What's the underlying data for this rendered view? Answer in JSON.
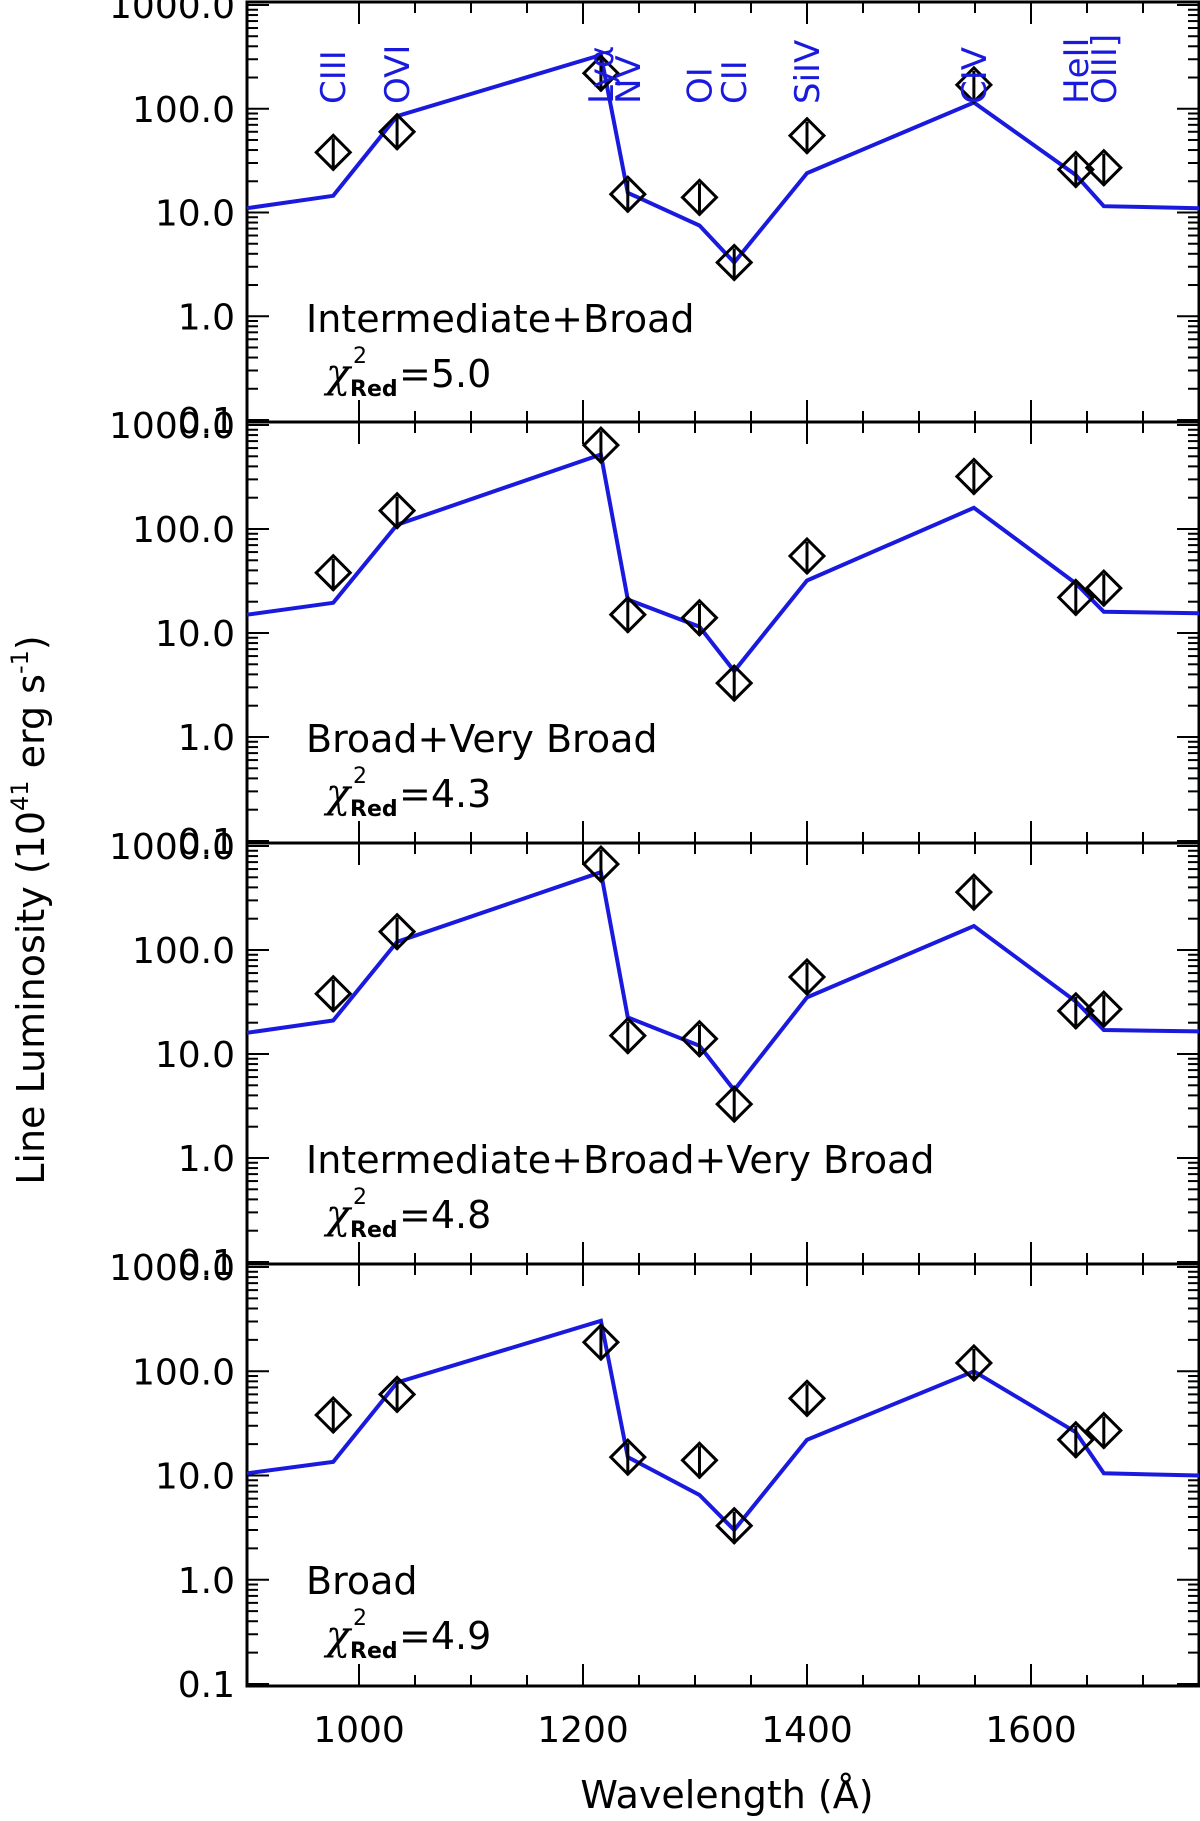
{
  "colors": {
    "model": "#1a1adf",
    "obs": "#000000",
    "line_id": "#1a1adf"
  },
  "chart_data": {
    "type": "line",
    "xlabel": "Wavelength (Å)",
    "ylabel_main": "Line Luminosity (10",
    "ylabel_exp": "41",
    "ylabel_tail": " erg s",
    "ylabel_exp2": "-1",
    "ylabel_close": ")",
    "xlim": [
      900,
      1750
    ],
    "ylim": [
      0.1,
      1000
    ],
    "yscale": "log",
    "xticks": [
      1000,
      1200,
      1400,
      1600
    ],
    "xtick_labels": [
      "1000",
      "1200",
      "1400",
      "1600"
    ],
    "yticks": [
      0.1,
      1,
      10,
      100,
      1000
    ],
    "ytick_labels": [
      "0.1",
      "1.0",
      "10.0",
      "100.0",
      "1000.0"
    ],
    "line_ids": [
      {
        "label": "CIII",
        "x": 977
      },
      {
        "label": "OVI",
        "x": 1034
      },
      {
        "label": "Lyα",
        "x": 1216
      },
      {
        "label": "NV",
        "x": 1240
      },
      {
        "label": "OI",
        "x": 1304
      },
      {
        "label": "CII",
        "x": 1335
      },
      {
        "label": "SiIV",
        "x": 1400
      },
      {
        "label": "CIV",
        "x": 1549
      },
      {
        "label": "HeII",
        "x": 1640
      },
      {
        "label": "OIII]",
        "x": 1665
      }
    ],
    "observed_x": [
      977,
      1034,
      1216,
      1240,
      1304,
      1335,
      1400,
      1549,
      1640,
      1665
    ],
    "panels": [
      {
        "label": "Intermediate+Broad",
        "chi_value": "=5.0",
        "model_x": [
          900,
          977,
          1034,
          1216,
          1240,
          1304,
          1335,
          1400,
          1549,
          1640,
          1665,
          1750
        ],
        "model_y": [
          11,
          14.5,
          85,
          330,
          15.5,
          7.5,
          3.3,
          24,
          115,
          23,
          11.5,
          11
        ],
        "observed_y": [
          38,
          60,
          220,
          15,
          14,
          3.3,
          55,
          170,
          26,
          27
        ]
      },
      {
        "label": "Broad+Very Broad",
        "chi_value": "=4.3",
        "model_x": [
          900,
          977,
          1034,
          1216,
          1240,
          1304,
          1335,
          1400,
          1549,
          1640,
          1665,
          1750
        ],
        "model_y": [
          15,
          19.5,
          110,
          520,
          21,
          11.5,
          4.3,
          32,
          160,
          30,
          16,
          15.5
        ],
        "observed_y": [
          38,
          150,
          640,
          15,
          14,
          3.3,
          55,
          320,
          22,
          27
        ]
      },
      {
        "label": "Intermediate+Broad+Very Broad",
        "chi_value": "=4.8",
        "model_x": [
          900,
          977,
          1034,
          1216,
          1240,
          1304,
          1335,
          1400,
          1549,
          1640,
          1665,
          1750
        ],
        "model_y": [
          16,
          21,
          120,
          560,
          22.5,
          12,
          4.5,
          35,
          170,
          32,
          17,
          16.5
        ],
        "observed_y": [
          38,
          150,
          670,
          15,
          14,
          3.3,
          55,
          360,
          26,
          27
        ]
      },
      {
        "label": "Broad",
        "chi_value": "=4.9",
        "model_x": [
          900,
          977,
          1034,
          1216,
          1240,
          1304,
          1335,
          1400,
          1549,
          1640,
          1665,
          1750
        ],
        "model_y": [
          10.5,
          13.5,
          78,
          305,
          15,
          6.5,
          3,
          22,
          100,
          26,
          10.5,
          10
        ],
        "observed_y": [
          38,
          60,
          190,
          15,
          14,
          3.3,
          55,
          120,
          22,
          27
        ]
      }
    ],
    "chi_symbol": "χ",
    "chi_sup": "2",
    "chi_sub": "Red"
  }
}
